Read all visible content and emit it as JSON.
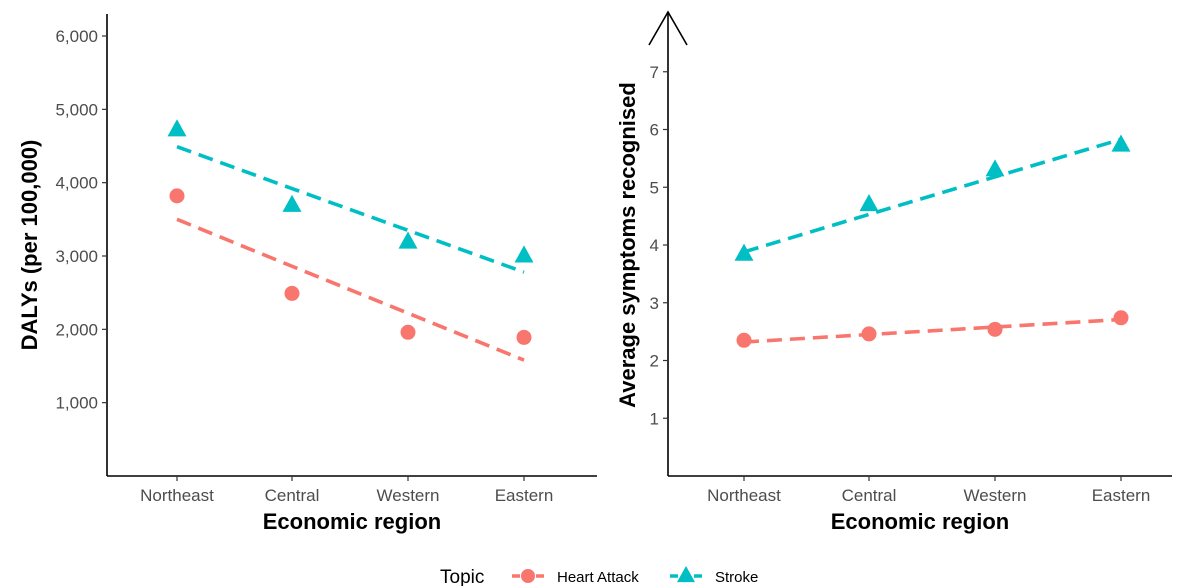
{
  "chart_data": [
    {
      "type": "scatter",
      "title": "",
      "xlabel": "Economic region",
      "ylabel": "DALYs (per 100,000)",
      "categories": [
        "Northeast",
        "Central",
        "Western",
        "Eastern"
      ],
      "yticks": [
        "1,000",
        "2,000",
        "3,000",
        "4,000",
        "5,000",
        "6,000"
      ],
      "ytick_values": [
        1000,
        2000,
        3000,
        4000,
        5000,
        6000
      ],
      "ylim": [
        0,
        6300
      ],
      "grid": false,
      "series": [
        {
          "name": "Heart Attack",
          "marker": "circle",
          "color": "#F8766D",
          "values": [
            3820,
            2490,
            1960,
            1890
          ],
          "trend": [
            3500,
            2860,
            2220,
            1580
          ]
        },
        {
          "name": "Stroke",
          "marker": "triangle",
          "color": "#00BFC4",
          "values": [
            4720,
            3690,
            3190,
            3000
          ],
          "trend": [
            4490,
            3920,
            3350,
            2780
          ]
        }
      ]
    },
    {
      "type": "scatter",
      "title": "",
      "xlabel": "Economic region",
      "ylabel": "Average symptoms recognised",
      "categories": [
        "Northeast",
        "Central",
        "Western",
        "Eastern"
      ],
      "yticks": [
        "1",
        "2",
        "3",
        "4",
        "5",
        "6",
        "7"
      ],
      "ytick_values": [
        1,
        2,
        3,
        4,
        5,
        6,
        7
      ],
      "ylim": [
        0,
        8
      ],
      "y_axis_arrow": true,
      "grid": false,
      "series": [
        {
          "name": "Heart Attack",
          "marker": "circle",
          "color": "#F8766D",
          "values": [
            2.35,
            2.46,
            2.54,
            2.74
          ],
          "trend": [
            2.32,
            2.45,
            2.58,
            2.71
          ]
        },
        {
          "name": "Stroke",
          "marker": "triangle",
          "color": "#00BFC4",
          "values": [
            3.84,
            4.7,
            5.3,
            5.73
          ],
          "trend": [
            3.88,
            4.53,
            5.18,
            5.83
          ]
        }
      ]
    }
  ],
  "legend": {
    "title": "Topic",
    "position": "bottom",
    "items": [
      {
        "label": "Heart Attack",
        "marker": "circle",
        "color": "#F8766D"
      },
      {
        "label": "Stroke",
        "marker": "triangle",
        "color": "#00BFC4"
      }
    ]
  }
}
